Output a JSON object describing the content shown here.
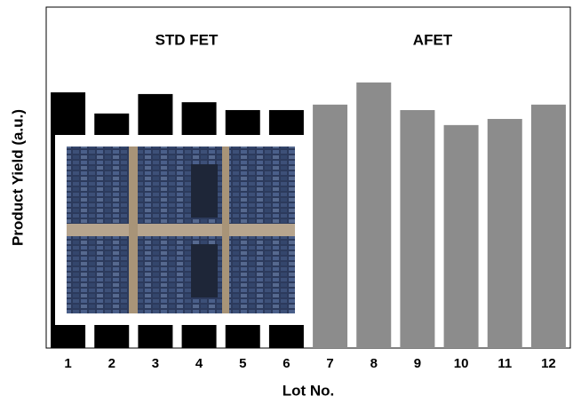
{
  "chart_data": {
    "type": "bar",
    "categories": [
      "1",
      "2",
      "3",
      "4",
      "5",
      "6",
      "7",
      "8",
      "9",
      "10",
      "11",
      "12"
    ],
    "values": [
      75,
      68.8,
      74.5,
      72.1,
      69.8,
      69.8,
      71.4,
      77.9,
      69.8,
      65.4,
      67.2,
      71.4
    ],
    "colors": [
      "#000000",
      "#000000",
      "#000000",
      "#000000",
      "#000000",
      "#000000",
      "#8c8c8c",
      "#8c8c8c",
      "#8c8c8c",
      "#8c8c8c",
      "#8c8c8c",
      "#8c8c8c"
    ],
    "ylim": [
      0,
      100
    ],
    "xlabel": "Lot No.",
    "ylabel": "Product Yield (a.u.)",
    "annotations": [
      "STD FET",
      "AFET"
    ]
  }
}
